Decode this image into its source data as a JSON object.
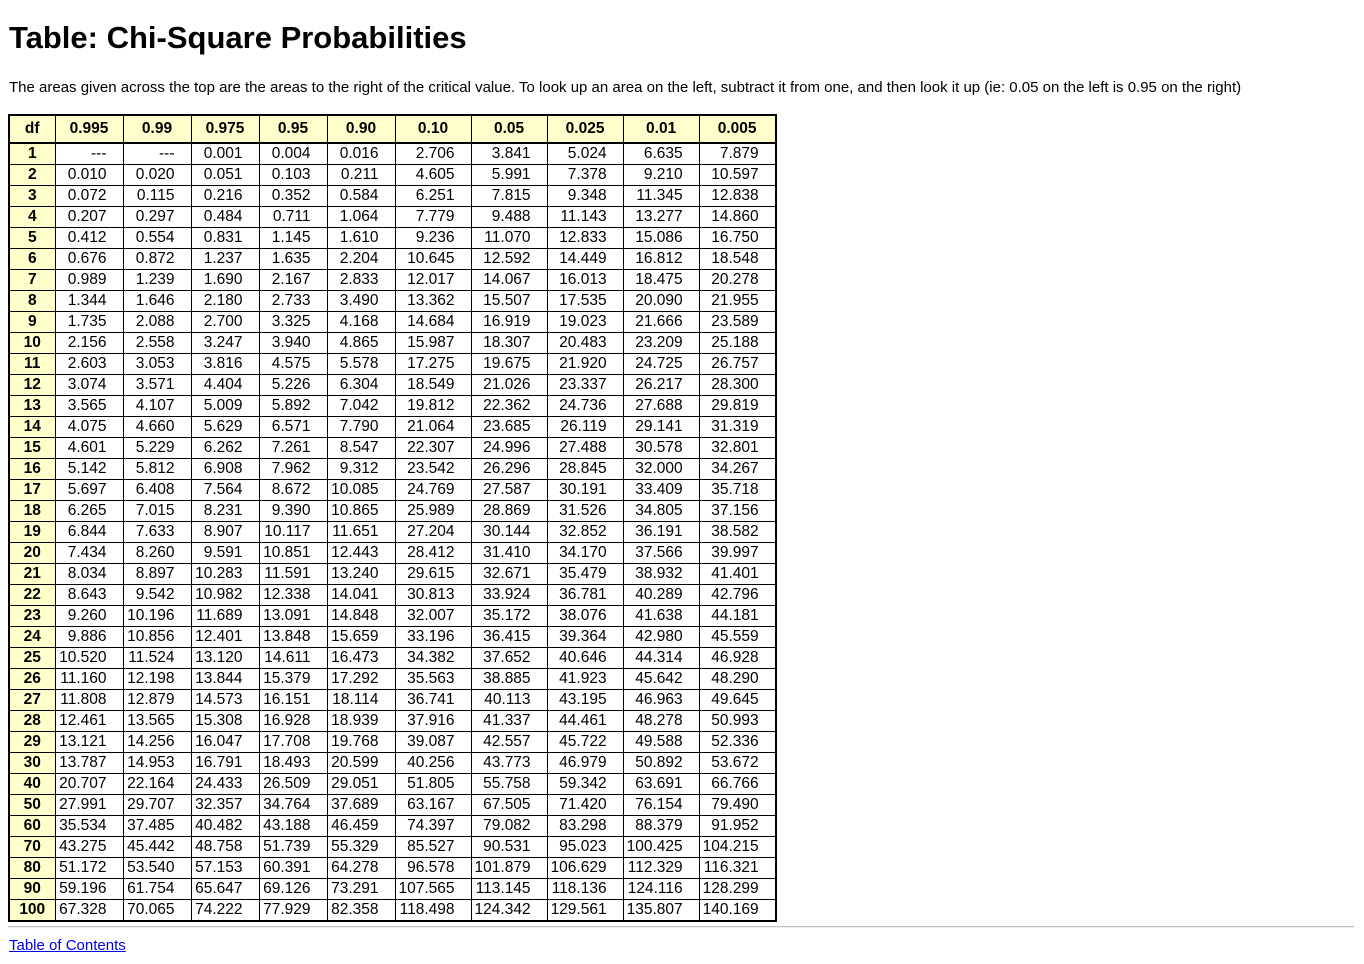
{
  "page": {
    "title": "Table: Chi-Square Probabilities",
    "intro": "The areas given across the top are the areas to the right of the critical value. To look up an area on the left, subtract it from one, and then look it up (ie: 0.05 on the left is 0.95 on the right)",
    "toc_link": "Table of Contents"
  },
  "colors": {
    "header_bg": "#ffffcc",
    "link": "#0000ee"
  },
  "table": {
    "headers": [
      "df",
      "0.995",
      "0.99",
      "0.975",
      "0.95",
      "0.90",
      "0.10",
      "0.05",
      "0.025",
      "0.01",
      "0.005"
    ],
    "rows": [
      [
        "1",
        "---",
        "---",
        "0.001",
        "0.004",
        "0.016",
        "2.706",
        "3.841",
        "5.024",
        "6.635",
        "7.879"
      ],
      [
        "2",
        "0.010",
        "0.020",
        "0.051",
        "0.103",
        "0.211",
        "4.605",
        "5.991",
        "7.378",
        "9.210",
        "10.597"
      ],
      [
        "3",
        "0.072",
        "0.115",
        "0.216",
        "0.352",
        "0.584",
        "6.251",
        "7.815",
        "9.348",
        "11.345",
        "12.838"
      ],
      [
        "4",
        "0.207",
        "0.297",
        "0.484",
        "0.711",
        "1.064",
        "7.779",
        "9.488",
        "11.143",
        "13.277",
        "14.860"
      ],
      [
        "5",
        "0.412",
        "0.554",
        "0.831",
        "1.145",
        "1.610",
        "9.236",
        "11.070",
        "12.833",
        "15.086",
        "16.750"
      ],
      [
        "6",
        "0.676",
        "0.872",
        "1.237",
        "1.635",
        "2.204",
        "10.645",
        "12.592",
        "14.449",
        "16.812",
        "18.548"
      ],
      [
        "7",
        "0.989",
        "1.239",
        "1.690",
        "2.167",
        "2.833",
        "12.017",
        "14.067",
        "16.013",
        "18.475",
        "20.278"
      ],
      [
        "8",
        "1.344",
        "1.646",
        "2.180",
        "2.733",
        "3.490",
        "13.362",
        "15.507",
        "17.535",
        "20.090",
        "21.955"
      ],
      [
        "9",
        "1.735",
        "2.088",
        "2.700",
        "3.325",
        "4.168",
        "14.684",
        "16.919",
        "19.023",
        "21.666",
        "23.589"
      ],
      [
        "10",
        "2.156",
        "2.558",
        "3.247",
        "3.940",
        "4.865",
        "15.987",
        "18.307",
        "20.483",
        "23.209",
        "25.188"
      ],
      [
        "11",
        "2.603",
        "3.053",
        "3.816",
        "4.575",
        "5.578",
        "17.275",
        "19.675",
        "21.920",
        "24.725",
        "26.757"
      ],
      [
        "12",
        "3.074",
        "3.571",
        "4.404",
        "5.226",
        "6.304",
        "18.549",
        "21.026",
        "23.337",
        "26.217",
        "28.300"
      ],
      [
        "13",
        "3.565",
        "4.107",
        "5.009",
        "5.892",
        "7.042",
        "19.812",
        "22.362",
        "24.736",
        "27.688",
        "29.819"
      ],
      [
        "14",
        "4.075",
        "4.660",
        "5.629",
        "6.571",
        "7.790",
        "21.064",
        "23.685",
        "26.119",
        "29.141",
        "31.319"
      ],
      [
        "15",
        "4.601",
        "5.229",
        "6.262",
        "7.261",
        "8.547",
        "22.307",
        "24.996",
        "27.488",
        "30.578",
        "32.801"
      ],
      [
        "16",
        "5.142",
        "5.812",
        "6.908",
        "7.962",
        "9.312",
        "23.542",
        "26.296",
        "28.845",
        "32.000",
        "34.267"
      ],
      [
        "17",
        "5.697",
        "6.408",
        "7.564",
        "8.672",
        "10.085",
        "24.769",
        "27.587",
        "30.191",
        "33.409",
        "35.718"
      ],
      [
        "18",
        "6.265",
        "7.015",
        "8.231",
        "9.390",
        "10.865",
        "25.989",
        "28.869",
        "31.526",
        "34.805",
        "37.156"
      ],
      [
        "19",
        "6.844",
        "7.633",
        "8.907",
        "10.117",
        "11.651",
        "27.204",
        "30.144",
        "32.852",
        "36.191",
        "38.582"
      ],
      [
        "20",
        "7.434",
        "8.260",
        "9.591",
        "10.851",
        "12.443",
        "28.412",
        "31.410",
        "34.170",
        "37.566",
        "39.997"
      ],
      [
        "21",
        "8.034",
        "8.897",
        "10.283",
        "11.591",
        "13.240",
        "29.615",
        "32.671",
        "35.479",
        "38.932",
        "41.401"
      ],
      [
        "22",
        "8.643",
        "9.542",
        "10.982",
        "12.338",
        "14.041",
        "30.813",
        "33.924",
        "36.781",
        "40.289",
        "42.796"
      ],
      [
        "23",
        "9.260",
        "10.196",
        "11.689",
        "13.091",
        "14.848",
        "32.007",
        "35.172",
        "38.076",
        "41.638",
        "44.181"
      ],
      [
        "24",
        "9.886",
        "10.856",
        "12.401",
        "13.848",
        "15.659",
        "33.196",
        "36.415",
        "39.364",
        "42.980",
        "45.559"
      ],
      [
        "25",
        "10.520",
        "11.524",
        "13.120",
        "14.611",
        "16.473",
        "34.382",
        "37.652",
        "40.646",
        "44.314",
        "46.928"
      ],
      [
        "26",
        "11.160",
        "12.198",
        "13.844",
        "15.379",
        "17.292",
        "35.563",
        "38.885",
        "41.923",
        "45.642",
        "48.290"
      ],
      [
        "27",
        "11.808",
        "12.879",
        "14.573",
        "16.151",
        "18.114",
        "36.741",
        "40.113",
        "43.195",
        "46.963",
        "49.645"
      ],
      [
        "28",
        "12.461",
        "13.565",
        "15.308",
        "16.928",
        "18.939",
        "37.916",
        "41.337",
        "44.461",
        "48.278",
        "50.993"
      ],
      [
        "29",
        "13.121",
        "14.256",
        "16.047",
        "17.708",
        "19.768",
        "39.087",
        "42.557",
        "45.722",
        "49.588",
        "52.336"
      ],
      [
        "30",
        "13.787",
        "14.953",
        "16.791",
        "18.493",
        "20.599",
        "40.256",
        "43.773",
        "46.979",
        "50.892",
        "53.672"
      ],
      [
        "40",
        "20.707",
        "22.164",
        "24.433",
        "26.509",
        "29.051",
        "51.805",
        "55.758",
        "59.342",
        "63.691",
        "66.766"
      ],
      [
        "50",
        "27.991",
        "29.707",
        "32.357",
        "34.764",
        "37.689",
        "63.167",
        "67.505",
        "71.420",
        "76.154",
        "79.490"
      ],
      [
        "60",
        "35.534",
        "37.485",
        "40.482",
        "43.188",
        "46.459",
        "74.397",
        "79.082",
        "83.298",
        "88.379",
        "91.952"
      ],
      [
        "70",
        "43.275",
        "45.442",
        "48.758",
        "51.739",
        "55.329",
        "85.527",
        "90.531",
        "95.023",
        "100.425",
        "104.215"
      ],
      [
        "80",
        "51.172",
        "53.540",
        "57.153",
        "60.391",
        "64.278",
        "96.578",
        "101.879",
        "106.629",
        "112.329",
        "116.321"
      ],
      [
        "90",
        "59.196",
        "61.754",
        "65.647",
        "69.126",
        "73.291",
        "107.565",
        "113.145",
        "118.136",
        "124.116",
        "128.299"
      ],
      [
        "100",
        "67.328",
        "70.065",
        "74.222",
        "77.929",
        "82.358",
        "118.498",
        "124.342",
        "129.561",
        "135.807",
        "140.169"
      ]
    ]
  }
}
